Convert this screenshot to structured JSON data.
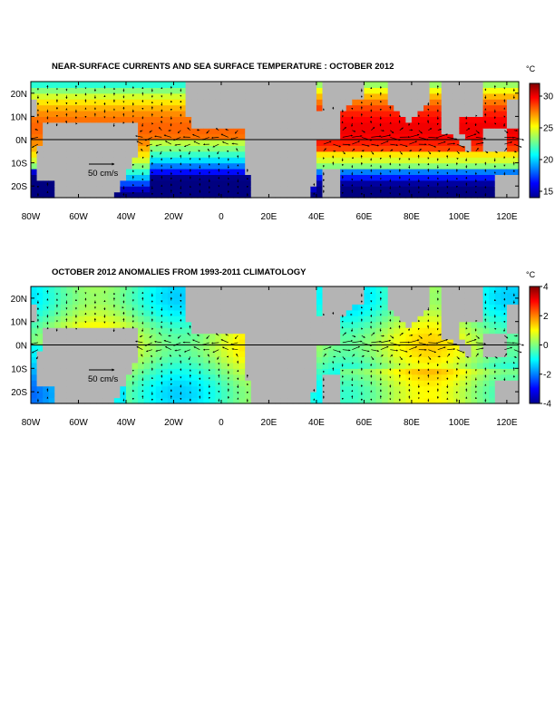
{
  "panels": [
    {
      "title": "NEAR-SURFACE CURRENTS AND SEA SURFACE TEMPERATURE : OCTOBER 2012",
      "colorbar": {
        "unit": "°C",
        "min": 14,
        "max": 32,
        "ticks": [
          "30",
          "25",
          "20",
          "15"
        ],
        "tick_values": [
          30,
          25,
          20,
          15
        ]
      },
      "scale_label": "50 cm/s",
      "field": "sst"
    },
    {
      "title": "OCTOBER 2012 ANOMALIES FROM 1993-2011 CLIMATOLOGY",
      "colorbar": {
        "unit": "°C",
        "min": -4,
        "max": 4,
        "ticks": [
          "4",
          "2",
          "0",
          "-2",
          "-4"
        ],
        "tick_values": [
          4,
          2,
          0,
          -2,
          -4
        ]
      },
      "scale_label": "50 cm/s",
      "field": "anom"
    }
  ],
  "axes": {
    "lon_range": [
      -80,
      125
    ],
    "lat_range": [
      -25,
      25
    ],
    "x_ticks": [
      "80W",
      "60W",
      "40W",
      "20W",
      "0",
      "20E",
      "40E",
      "60E",
      "80E",
      "100E",
      "120E"
    ],
    "x_tick_values": [
      -80,
      -60,
      -40,
      -20,
      0,
      20,
      40,
      60,
      80,
      100,
      120
    ],
    "y_ticks": [
      "20N",
      "10N",
      "0N",
      "10S",
      "20S"
    ],
    "y_tick_values": [
      20,
      10,
      0,
      -10,
      -20
    ]
  },
  "colors": {
    "land": "#b4b4b4",
    "background": "#ffffff"
  }
}
